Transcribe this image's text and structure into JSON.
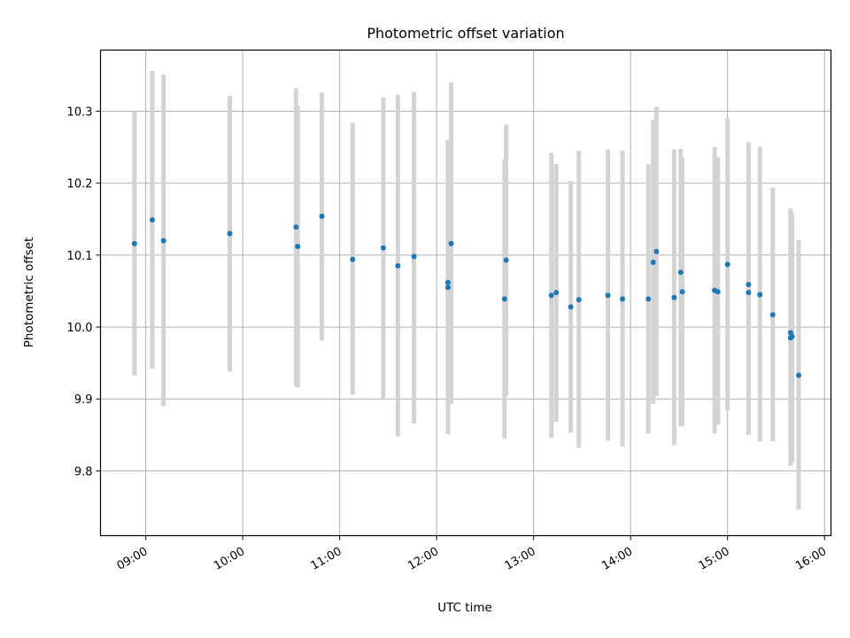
{
  "chart_data": {
    "type": "scatter",
    "title": "Photometric offset variation",
    "xlabel": "UTC time",
    "ylabel": "Photometric offset",
    "x_axis": {
      "kind": "time",
      "range": [
        "08:32",
        "16:04"
      ],
      "ticks": [
        "09:00",
        "10:00",
        "11:00",
        "12:00",
        "13:00",
        "14:00",
        "15:00",
        "16:00"
      ],
      "tick_label_rotation": "30 degrees"
    },
    "y_axis": {
      "range": [
        9.71,
        10.385
      ],
      "ticks": [
        "9.8",
        "9.9",
        "10.0",
        "10.1",
        "10.2",
        "10.3"
      ]
    },
    "grid": true,
    "legend": "none",
    "colors": {
      "marker": "#1f77b4",
      "errorbar": "#d3d3d3",
      "grid": "#b0b0b0",
      "axes": "#000000"
    },
    "series": [
      {
        "style": "points with vertical error bars",
        "points": [
          {
            "x": "08:53",
            "y": 10.116,
            "low": 9.933,
            "high": 10.3
          },
          {
            "x": "09:04",
            "y": 10.149,
            "low": 9.942,
            "high": 10.356
          },
          {
            "x": "09:11",
            "y": 10.12,
            "low": 9.89,
            "high": 10.351
          },
          {
            "x": "09:52",
            "y": 10.13,
            "low": 9.938,
            "high": 10.321
          },
          {
            "x": "10:33",
            "y": 10.139,
            "low": 9.918,
            "high": 10.332
          },
          {
            "x": "10:34",
            "y": 10.112,
            "low": 9.916,
            "high": 10.308
          },
          {
            "x": "10:49",
            "y": 10.154,
            "low": 9.981,
            "high": 10.326
          },
          {
            "x": "11:08",
            "y": 10.094,
            "low": 9.906,
            "high": 10.284
          },
          {
            "x": "11:27",
            "y": 10.11,
            "low": 9.901,
            "high": 10.319
          },
          {
            "x": "11:36",
            "y": 10.085,
            "low": 9.848,
            "high": 10.323
          },
          {
            "x": "11:46",
            "y": 10.098,
            "low": 9.866,
            "high": 10.327
          },
          {
            "x": "12:07",
            "y": 10.062,
            "low": 9.862,
            "high": 10.26
          },
          {
            "x": "12:07",
            "y": 10.055,
            "low": 9.851,
            "high": 10.25
          },
          {
            "x": "12:09",
            "y": 10.116,
            "low": 9.893,
            "high": 10.34
          },
          {
            "x": "12:42",
            "y": 10.039,
            "low": 9.845,
            "high": 10.233
          },
          {
            "x": "12:43",
            "y": 10.093,
            "low": 9.905,
            "high": 10.281
          },
          {
            "x": "13:11",
            "y": 10.044,
            "low": 9.846,
            "high": 10.242
          },
          {
            "x": "13:14",
            "y": 10.048,
            "low": 9.868,
            "high": 10.227
          },
          {
            "x": "13:23",
            "y": 10.028,
            "low": 9.853,
            "high": 10.203
          },
          {
            "x": "13:28",
            "y": 10.038,
            "low": 9.832,
            "high": 10.245
          },
          {
            "x": "13:46",
            "y": 10.044,
            "low": 9.842,
            "high": 10.247
          },
          {
            "x": "13:55",
            "y": 10.039,
            "low": 9.834,
            "high": 10.245
          },
          {
            "x": "14:11",
            "y": 10.039,
            "low": 9.852,
            "high": 10.226
          },
          {
            "x": "14:14",
            "y": 10.09,
            "low": 9.893,
            "high": 10.288
          },
          {
            "x": "14:16",
            "y": 10.105,
            "low": 9.904,
            "high": 10.306
          },
          {
            "x": "14:27",
            "y": 10.041,
            "low": 9.836,
            "high": 10.247
          },
          {
            "x": "14:31",
            "y": 10.076,
            "low": 9.862,
            "high": 10.248
          },
          {
            "x": "14:32",
            "y": 10.049,
            "low": 9.862,
            "high": 10.236
          },
          {
            "x": "14:52",
            "y": 10.051,
            "low": 9.852,
            "high": 10.25
          },
          {
            "x": "14:54",
            "y": 10.049,
            "low": 9.864,
            "high": 10.236
          },
          {
            "x": "15:00",
            "y": 10.087,
            "low": 9.884,
            "high": 10.29
          },
          {
            "x": "15:13",
            "y": 10.059,
            "low": 9.862,
            "high": 10.257
          },
          {
            "x": "15:13",
            "y": 10.048,
            "low": 9.85,
            "high": 10.245
          },
          {
            "x": "15:20",
            "y": 10.045,
            "low": 9.841,
            "high": 10.25
          },
          {
            "x": "15:28",
            "y": 10.017,
            "low": 9.841,
            "high": 10.194
          },
          {
            "x": "15:39",
            "y": 9.992,
            "low": 9.82,
            "high": 10.165
          },
          {
            "x": "15:39",
            "y": 9.985,
            "low": 9.807,
            "high": 10.16
          },
          {
            "x": "15:40",
            "y": 9.987,
            "low": 9.812,
            "high": 10.158
          },
          {
            "x": "15:44",
            "y": 9.933,
            "low": 9.746,
            "high": 10.121
          }
        ]
      }
    ]
  }
}
